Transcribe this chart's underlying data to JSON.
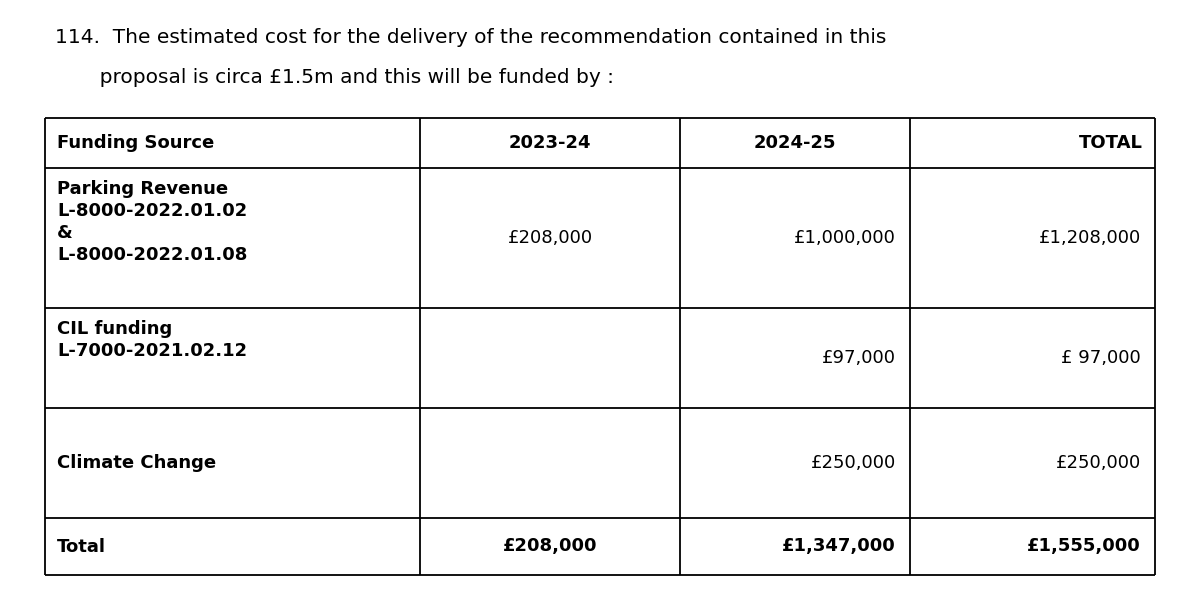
{
  "title_line1": "114.  The estimated cost for the delivery of the recommendation contained in this",
  "title_line2": "       proposal is circa £1.5m and this will be funded by :",
  "headers": [
    "Funding Source",
    "2023-24",
    "2024-25",
    "TOTAL"
  ],
  "rows": [
    {
      "source_lines": [
        "Parking Revenue",
        "L-8000-2022.01.02",
        "&",
        "L-8000-2022.01.08"
      ],
      "col2023": "£208,000",
      "col2024": "£1,000,000",
      "total": "£1,208,000",
      "is_total": false
    },
    {
      "source_lines": [
        "CIL funding",
        "L-7000-2021.02.12"
      ],
      "col2023": "",
      "col2024": "£97,000",
      "total": "£ 97,000",
      "is_total": false
    },
    {
      "source_lines": [
        "Climate Change"
      ],
      "col2023": "",
      "col2024": "£250,000",
      "total": "£250,000",
      "is_total": false
    },
    {
      "source_lines": [
        "Total"
      ],
      "col2023": "£208,000",
      "col2024": "£1,347,000",
      "total": "£1,555,000",
      "is_total": true
    }
  ],
  "bg_color": "#ffffff",
  "text_color": "#000000",
  "font_size_title": 14.5,
  "font_size_table": 13.0
}
